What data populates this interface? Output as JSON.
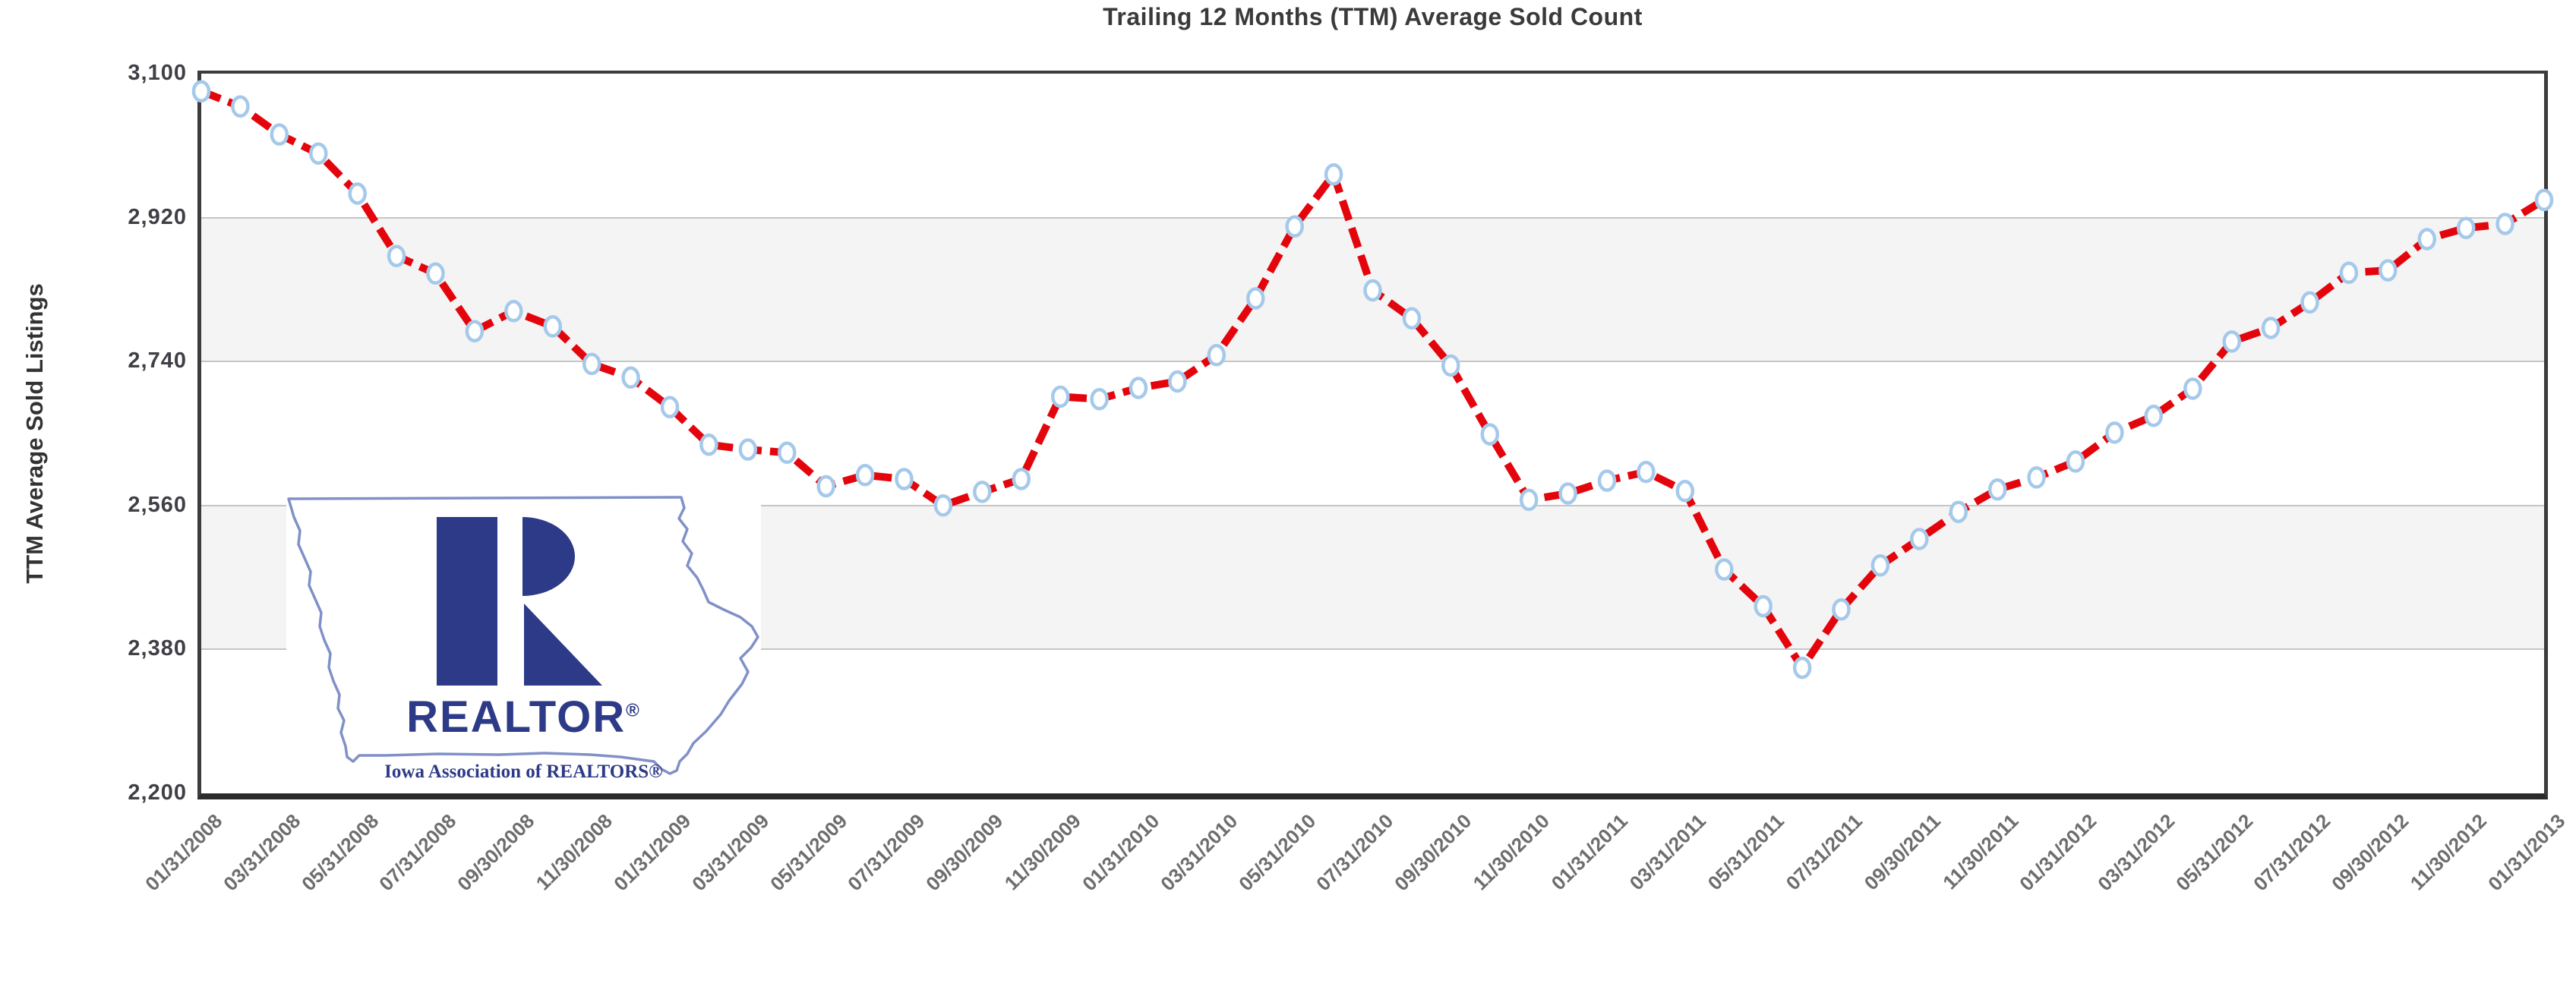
{
  "title": "Trailing 12 Months (TTM) Average Sold Count",
  "y_axis": {
    "label": "TTM Average Sold Listings",
    "ticks": [
      "3,100",
      "2,920",
      "2,740",
      "2,560",
      "2,380",
      "2,200"
    ],
    "tick_values": [
      3100,
      2920,
      2740,
      2560,
      2380,
      2200
    ]
  },
  "x_axis": {
    "tick_labels": [
      "01/31/2008",
      "03/31/2008",
      "05/31/2008",
      "07/31/2008",
      "09/30/2008",
      "11/30/2008",
      "01/31/2009",
      "03/31/2009",
      "05/31/2009",
      "07/31/2009",
      "09/30/2009",
      "11/30/2009",
      "01/31/2010",
      "03/31/2010",
      "05/31/2010",
      "07/31/2010",
      "09/30/2010",
      "11/30/2010",
      "01/31/2011",
      "03/31/2011",
      "05/31/2011",
      "07/31/2011",
      "09/30/2011",
      "11/30/2011",
      "01/31/2012",
      "03/31/2012",
      "05/31/2012",
      "07/31/2012",
      "09/30/2012",
      "11/30/2012",
      "01/31/2013"
    ]
  },
  "chart_data": {
    "type": "line",
    "title": "Trailing 12 Months (TTM) Average Sold Count",
    "xlabel": "",
    "ylabel": "TTM Average Sold Listings",
    "ylim": [
      2200,
      3100
    ],
    "gridlines": [
      2920,
      2740,
      2560,
      2380
    ],
    "plot_bands": [
      {
        "from": 2920,
        "to": 2740
      },
      {
        "from": 2560,
        "to": 2380
      }
    ],
    "band_color": "#F4F4F4",
    "grid_color": "#C6C6C6",
    "legend": "none",
    "line": {
      "color": "#E4050C",
      "style": "dashed",
      "width": 10
    },
    "marker": {
      "shape": "ellipse",
      "fill": "#FFFFFF",
      "stroke": "#A5C9EA"
    },
    "x": [
      "01/31/2008",
      "02/29/2008",
      "03/31/2008",
      "04/30/2008",
      "05/31/2008",
      "06/30/2008",
      "07/31/2008",
      "08/31/2008",
      "09/30/2008",
      "10/31/2008",
      "11/30/2008",
      "12/31/2008",
      "01/31/2009",
      "02/28/2009",
      "03/31/2009",
      "04/30/2009",
      "05/31/2009",
      "06/30/2009",
      "07/31/2009",
      "08/31/2009",
      "09/30/2009",
      "10/31/2009",
      "11/30/2009",
      "12/31/2009",
      "01/31/2010",
      "02/28/2010",
      "03/31/2010",
      "04/30/2010",
      "05/31/2010",
      "06/30/2010",
      "07/31/2010",
      "08/31/2010",
      "09/30/2010",
      "10/31/2010",
      "11/30/2010",
      "12/31/2010",
      "01/31/2011",
      "02/28/2011",
      "03/31/2011",
      "04/30/2011",
      "05/31/2011",
      "06/30/2011",
      "07/31/2011",
      "08/31/2011",
      "09/30/2011",
      "10/31/2011",
      "11/30/2011",
      "12/31/2011",
      "01/31/2012",
      "02/29/2012",
      "03/31/2012",
      "04/30/2012",
      "05/31/2012",
      "06/30/2012",
      "07/31/2012",
      "08/31/2012",
      "09/30/2012",
      "10/31/2012",
      "11/30/2012",
      "12/31/2012",
      "01/31/2013"
    ],
    "values": [
      3078,
      3059,
      3024,
      3000,
      2950,
      2872,
      2850,
      2778,
      2803,
      2784,
      2737,
      2720,
      2683,
      2636,
      2630,
      2626,
      2584,
      2598,
      2593,
      2560,
      2577,
      2593,
      2696,
      2693,
      2707,
      2715,
      2748,
      2819,
      2909,
      2974,
      2829,
      2794,
      2735,
      2649,
      2567,
      2575,
      2591,
      2602,
      2578,
      2480,
      2434,
      2357,
      2430,
      2485,
      2518,
      2552,
      2580,
      2595,
      2615,
      2651,
      2672,
      2706,
      2765,
      2782,
      2814,
      2851,
      2854,
      2893,
      2907,
      2912,
      2942
    ]
  },
  "logo": {
    "wordmark": "REALTOR",
    "registered": "®",
    "caption": "Iowa Association of REALTORS®",
    "brand_blue": "#2D3A87",
    "outline_blue": "#8090C8"
  }
}
